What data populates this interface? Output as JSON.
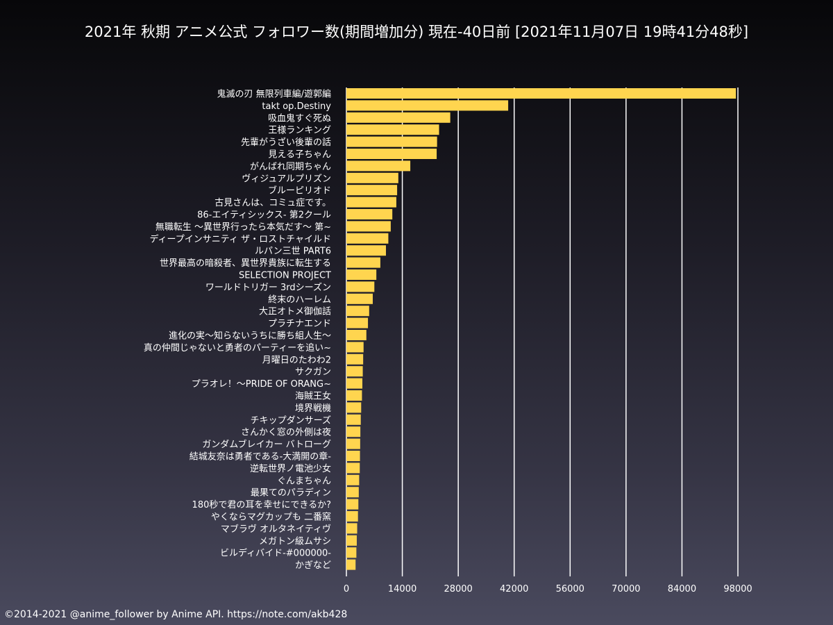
{
  "chart_data": {
    "type": "bar",
    "orientation": "horizontal",
    "title": "2021年 秋期 アニメ公式 フォロワー数(期間増加分) 現在-40日前 [2021年11月07日 19時41分48秒]",
    "xlabel": "",
    "ylabel": "",
    "xlim": [
      0,
      98000
    ],
    "xticks": [
      0,
      14000,
      28000,
      42000,
      56000,
      70000,
      84000,
      98000
    ],
    "grid": true,
    "bar_color": "#ffd54f",
    "categories": [
      "鬼滅の刃 無限列車編/遊郭編",
      "takt op.Destiny",
      "吸血鬼すぐ死ぬ",
      "王様ランキング",
      "先輩がうざい後輩の話",
      "見える子ちゃん",
      "がんばれ同期ちゃん",
      "ヴィジュアルプリズン",
      "ブルーピリオド",
      "古見さんは、コミュ症です。",
      "86-エイティシックス- 第2クール",
      "無職転生 〜異世界行ったら本気だす〜 第~",
      "ディープインサニティ ザ・ロストチャイルド",
      "ルパン三世 PART6",
      "世界最高の暗殺者、異世界貴族に転生する",
      "SELECTION PROJECT",
      "ワールドトリガー 3rdシーズン",
      "終末のハーレム",
      "大正オトメ御伽話",
      "プラチナエンド",
      "進化の実〜知らないうちに勝ち組人生〜",
      "真の仲間じゃないと勇者のパーティーを追い~",
      "月曜日のたわわ2",
      "サクガン",
      "プラオレ！〜PRIDE OF ORANG~",
      "海賊王女",
      "境界戦機",
      "チキップダンサーズ",
      "さんかく窓の外側は夜",
      "ガンダムブレイカー バトローグ",
      "結城友奈は勇者である-大満開の章-",
      "逆転世界ノ電池少女",
      "ぐんまちゃん",
      "最果てのパラディン",
      "180秒で君の耳を幸せにできるか?",
      "やくならマグカップも 二番窯",
      "マブラヴ オルタネイティヴ",
      "メガトン級ムサシ",
      "ビルディバイド-#000000-",
      "かぎなど"
    ],
    "values": [
      97500,
      40500,
      26000,
      23200,
      22700,
      22600,
      16000,
      13000,
      12700,
      12500,
      11500,
      11100,
      10500,
      9900,
      8500,
      7500,
      7000,
      6600,
      5700,
      5400,
      5000,
      4300,
      4200,
      4100,
      4000,
      3900,
      3700,
      3600,
      3500,
      3450,
      3400,
      3350,
      3200,
      3100,
      3000,
      2900,
      2700,
      2600,
      2500,
      2300
    ]
  },
  "footer": {
    "text": "©2014-2021 @anime_follower by Anime API. https://note.com/akb428"
  }
}
